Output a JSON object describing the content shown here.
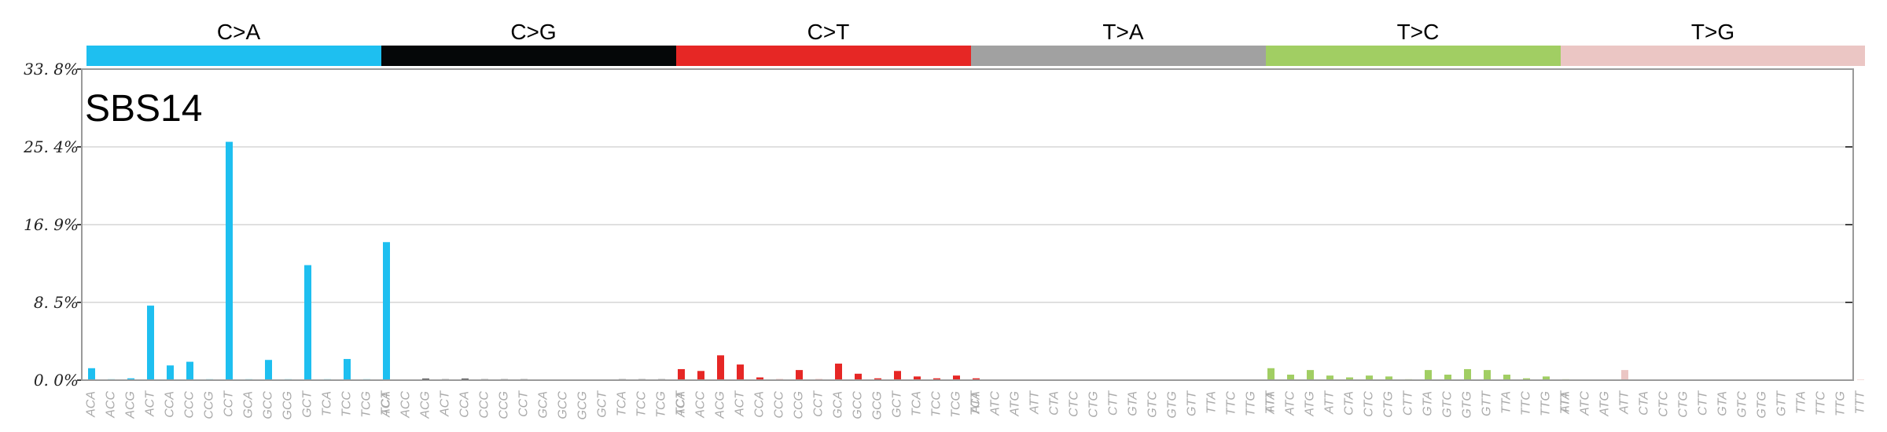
{
  "chart_data": {
    "type": "bar",
    "title": "SBS14",
    "y_ticks": [
      "33. 8%",
      "25. 4%",
      "16. 9%",
      "8. 5%",
      "0. 0%"
    ],
    "ylim": [
      0,
      33.8
    ],
    "grid": true,
    "groups": [
      {
        "name": "C>A",
        "color": "#1ebff0",
        "contexts": [
          "ACA",
          "ACC",
          "ACG",
          "ACT",
          "CCA",
          "CCC",
          "CCG",
          "CCT",
          "GCA",
          "GCC",
          "GCG",
          "GCT",
          "TCA",
          "TCC",
          "TCG",
          "TCT"
        ],
        "values": [
          1.3,
          0.1,
          0.2,
          8.1,
          1.6,
          2.0,
          0.1,
          25.9,
          0.1,
          2.2,
          0.1,
          12.5,
          0.1,
          2.3,
          0.1,
          15.0
        ]
      },
      {
        "name": "C>G",
        "color": "#050708",
        "contexts": [
          "ACA",
          "ACC",
          "ACG",
          "ACT",
          "CCA",
          "CCC",
          "CCG",
          "CCT",
          "GCA",
          "GCC",
          "GCG",
          "GCT",
          "TCA",
          "TCC",
          "TCG",
          "TCT"
        ],
        "values": [
          0.05,
          0.05,
          0.15,
          0.1,
          0.15,
          0.1,
          0.1,
          0.1,
          0.05,
          0.05,
          0.05,
          0.05,
          0.1,
          0.1,
          0.1,
          0.1
        ]
      },
      {
        "name": "C>T",
        "color": "#e62725",
        "contexts": [
          "ACA",
          "ACC",
          "ACG",
          "ACT",
          "CCA",
          "CCC",
          "CCG",
          "CCT",
          "GCA",
          "GCC",
          "GCG",
          "GCT",
          "TCA",
          "TCC",
          "TCG",
          "TCT"
        ],
        "values": [
          1.2,
          1.0,
          2.7,
          1.7,
          0.3,
          0.1,
          1.1,
          0.1,
          1.8,
          0.7,
          0.2,
          1.0,
          0.4,
          0.2,
          0.5,
          0.2
        ]
      },
      {
        "name": "T>A",
        "color": "#a1a1a1",
        "contexts": [
          "ATA",
          "ATC",
          "ATG",
          "ATT",
          "CTA",
          "CTC",
          "CTG",
          "CTT",
          "GTA",
          "GTC",
          "GTG",
          "GTT",
          "TTA",
          "TTC",
          "TTG",
          "TTT"
        ],
        "values": [
          0.05,
          0.05,
          0.05,
          0.05,
          0.05,
          0.05,
          0.05,
          0.05,
          0.05,
          0.05,
          0.05,
          0.05,
          0.05,
          0.05,
          0.05,
          0.05
        ]
      },
      {
        "name": "T>C",
        "color": "#a1ce63",
        "contexts": [
          "ATA",
          "ATC",
          "ATG",
          "ATT",
          "CTA",
          "CTC",
          "CTG",
          "CTT",
          "GTA",
          "GTC",
          "GTG",
          "GTT",
          "TTA",
          "TTC",
          "TTG",
          "TTT"
        ],
        "values": [
          1.3,
          0.6,
          1.1,
          0.5,
          0.3,
          0.5,
          0.4,
          0.1,
          1.1,
          0.6,
          1.2,
          1.1,
          0.6,
          0.2,
          0.4,
          0.1
        ]
      },
      {
        "name": "T>G",
        "color": "#ebc6c4",
        "contexts": [
          "ATA",
          "ATC",
          "ATG",
          "ATT",
          "CTA",
          "CTC",
          "CTG",
          "CTT",
          "GTA",
          "GTC",
          "GTG",
          "GTT",
          "TTA",
          "TTC",
          "TTG",
          "TTT"
        ],
        "values": [
          0.05,
          0.05,
          0.05,
          1.1,
          0.05,
          0.05,
          0.05,
          0.05,
          0.05,
          0.05,
          0.05,
          0.05,
          0.05,
          0.05,
          0.05,
          0.05
        ]
      }
    ]
  }
}
